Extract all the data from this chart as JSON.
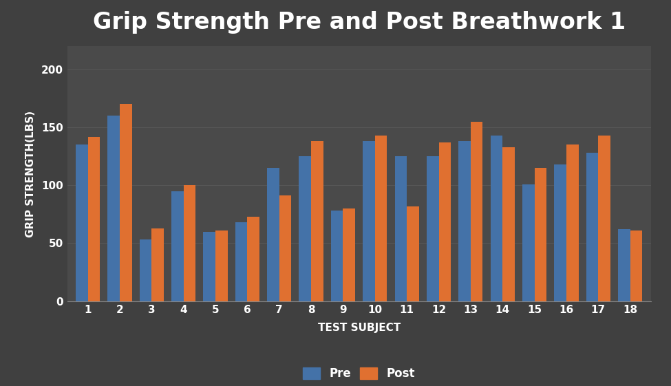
{
  "title": "Grip Strength Pre and Post Breathwork 1",
  "xlabel": "TEST SUBJECT",
  "ylabel": "GRIP STRENGTH(LBS)",
  "categories": [
    1,
    2,
    3,
    4,
    5,
    6,
    7,
    8,
    9,
    10,
    11,
    12,
    13,
    14,
    15,
    16,
    17,
    18
  ],
  "pre": [
    135,
    160,
    53,
    95,
    60,
    68,
    115,
    125,
    78,
    138,
    125,
    125,
    138,
    143,
    101,
    118,
    128,
    62
  ],
  "post": [
    142,
    170,
    63,
    100,
    61,
    73,
    91,
    138,
    80,
    143,
    82,
    137,
    155,
    133,
    115,
    135,
    143,
    61
  ],
  "pre_color": "#4472a8",
  "post_color": "#e07030",
  "background_color": "#404040",
  "plot_bg_color": "#4a4a4a",
  "text_color": "#ffffff",
  "grid_color": "#5a5a5a",
  "ylim": [
    0,
    220
  ],
  "yticks": [
    0,
    50,
    100,
    150,
    200
  ],
  "title_fontsize": 24,
  "axis_label_fontsize": 11,
  "tick_fontsize": 11,
  "legend_fontsize": 12,
  "bar_width": 0.38
}
